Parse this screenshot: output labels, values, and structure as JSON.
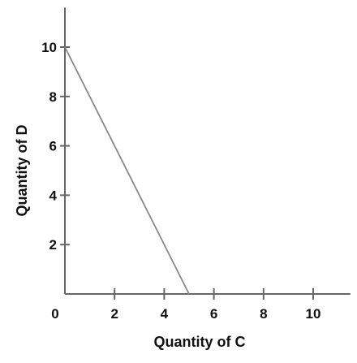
{
  "chart_data": {
    "type": "line",
    "xlabel": "Quantity of C",
    "ylabel": "Quantity of D",
    "origin_label": "0",
    "xlim": [
      0,
      11.5
    ],
    "ylim": [
      0,
      11.6
    ],
    "x_ticks": [
      2,
      4,
      6,
      8,
      10
    ],
    "y_ticks": [
      2,
      4,
      6,
      8,
      10
    ],
    "grid": false,
    "series": [
      {
        "points": [
          {
            "x": 0,
            "y": 10
          },
          {
            "x": 5,
            "y": 0
          }
        ]
      }
    ],
    "colors": {
      "axis": "#666666",
      "line": "#888888",
      "text": "#111111"
    }
  }
}
